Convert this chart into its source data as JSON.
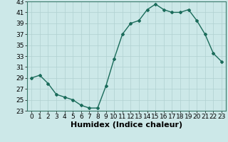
{
  "x": [
    0,
    1,
    2,
    3,
    4,
    5,
    6,
    7,
    8,
    9,
    10,
    11,
    12,
    13,
    14,
    15,
    16,
    17,
    18,
    19,
    20,
    21,
    22,
    23
  ],
  "y": [
    29.0,
    29.5,
    28.0,
    26.0,
    25.5,
    25.0,
    24.0,
    23.5,
    23.5,
    27.5,
    32.5,
    37.0,
    39.0,
    39.5,
    41.5,
    42.5,
    41.5,
    41.0,
    41.0,
    41.5,
    39.5,
    37.0,
    33.5,
    32.0
  ],
  "xlabel": "Humidex (Indice chaleur)",
  "ylim": [
    23,
    43
  ],
  "xlim": [
    -0.5,
    23.5
  ],
  "yticks": [
    23,
    25,
    27,
    29,
    31,
    33,
    35,
    37,
    39,
    41,
    43
  ],
  "xticks": [
    0,
    1,
    2,
    3,
    4,
    5,
    6,
    7,
    8,
    9,
    10,
    11,
    12,
    13,
    14,
    15,
    16,
    17,
    18,
    19,
    20,
    21,
    22,
    23
  ],
  "line_color": "#1a6b5a",
  "marker": "D",
  "marker_size": 2.0,
  "line_width": 1.0,
  "bg_color": "#cce8e8",
  "grid_color": "#b0d0d0",
  "xlabel_fontsize": 8,
  "tick_fontsize": 6.5
}
